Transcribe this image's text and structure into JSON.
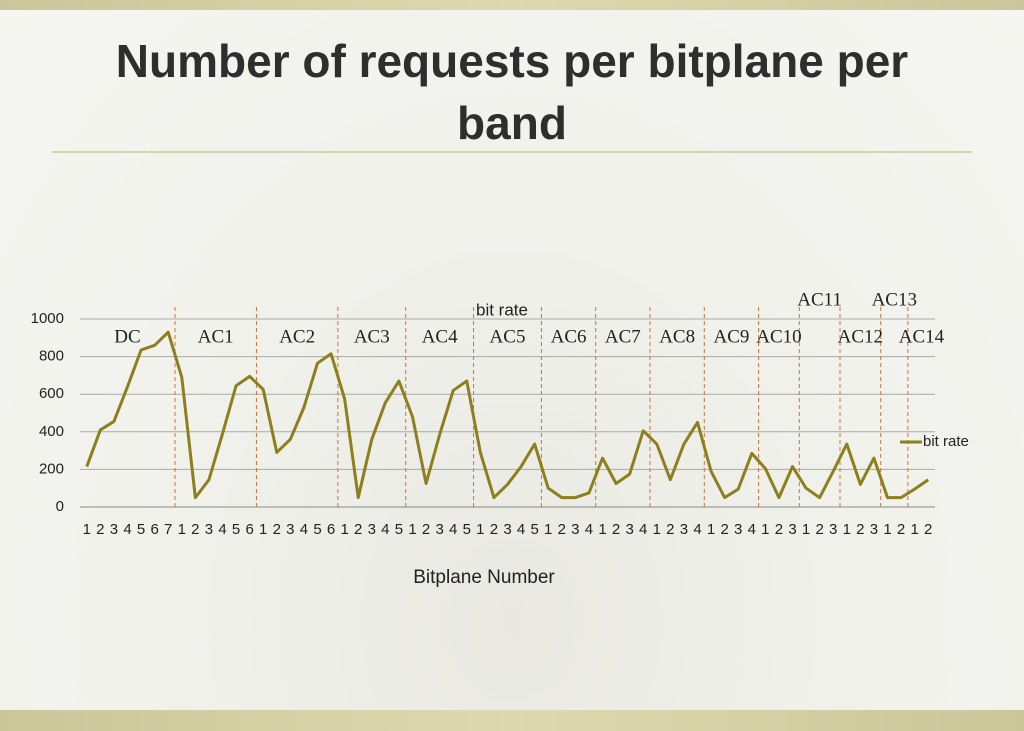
{
  "title": "Number of requests per bitplane per band",
  "chart_data": {
    "type": "line",
    "title": "bit rate",
    "x_label": "Bitplane Number",
    "categories": [
      "1",
      "2",
      "3",
      "4",
      "5",
      "6",
      "7",
      "1",
      "2",
      "3",
      "4",
      "5",
      "6",
      "1",
      "2",
      "3",
      "4",
      "5",
      "6",
      "1",
      "2",
      "3",
      "4",
      "5",
      "1",
      "2",
      "3",
      "4",
      "5",
      "1",
      "2",
      "3",
      "4",
      "5",
      "1",
      "2",
      "3",
      "4",
      "1",
      "2",
      "3",
      "4",
      "1",
      "2",
      "3",
      "4",
      "1",
      "2",
      "3",
      "4",
      "1",
      "2",
      "3",
      "1",
      "2",
      "3",
      "1",
      "2",
      "3",
      "1",
      "2",
      "1",
      "2"
    ],
    "bands": [
      "DC",
      "AC1",
      "AC2",
      "AC3",
      "AC4",
      "AC5",
      "AC6",
      "AC7",
      "AC8",
      "AC9",
      "AC10",
      "AC11",
      "AC12",
      "AC13",
      "AC14"
    ],
    "series": [
      {
        "name": "bit rate",
        "color": "#8c7f1c",
        "values": [
          215,
          410,
          455,
          640,
          835,
          860,
          930,
          690,
          50,
          145,
          390,
          645,
          695,
          625,
          290,
          360,
          530,
          765,
          815,
          575,
          50,
          360,
          555,
          670,
          480,
          125,
          385,
          620,
          670,
          290,
          50,
          120,
          215,
          335,
          100,
          50,
          50,
          75,
          260,
          125,
          175,
          405,
          335,
          145,
          335,
          450,
          190,
          50,
          95,
          285,
          205,
          50,
          215,
          100,
          50,
          190,
          335,
          120,
          260,
          50,
          50,
          95,
          145
        ]
      }
    ],
    "ylim": [
      0,
      1000
    ],
    "yticks": [
      0,
      200,
      400,
      600,
      800,
      1000
    ],
    "grid": true,
    "legend": "right"
  }
}
